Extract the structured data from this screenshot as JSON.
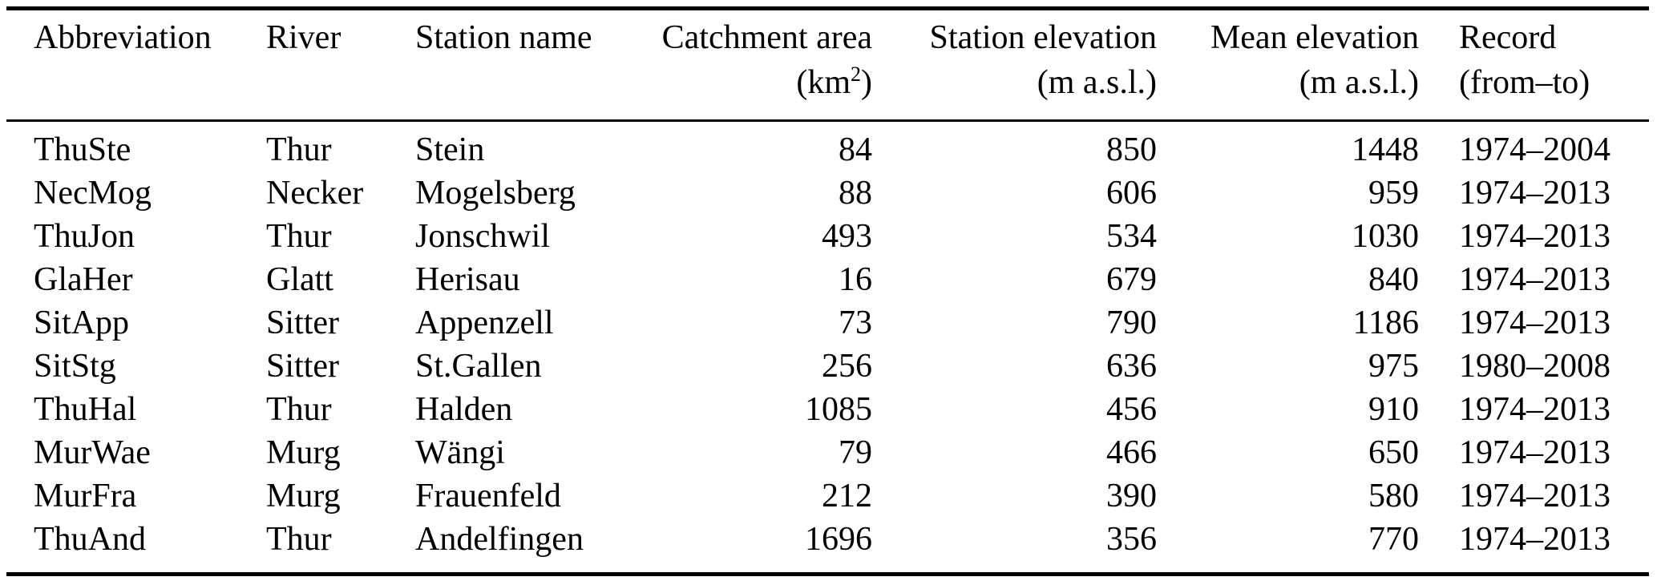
{
  "colors": {
    "text": "#000000",
    "background": "#ffffff",
    "rule": "#000000"
  },
  "table": {
    "columns": [
      {
        "label": "Abbreviation",
        "unit": ""
      },
      {
        "label": "River",
        "unit": ""
      },
      {
        "label": "Station name",
        "unit": ""
      },
      {
        "label": "Catchment area",
        "unit_prefix": "(km",
        "unit_sup": "2",
        "unit_suffix": ")"
      },
      {
        "label": "Station elevation",
        "unit": "(m a.s.l.)"
      },
      {
        "label": "Mean elevation",
        "unit": "(m a.s.l.)"
      },
      {
        "label": "Record",
        "unit": "(from–to)"
      }
    ],
    "rows": [
      [
        "ThuSte",
        "Thur",
        "Stein",
        "84",
        "850",
        "1448",
        "1974–2004"
      ],
      [
        "NecMog",
        "Necker",
        "Mogelsberg",
        "88",
        "606",
        "959",
        "1974–2013"
      ],
      [
        "ThuJon",
        "Thur",
        "Jonschwil",
        "493",
        "534",
        "1030",
        "1974–2013"
      ],
      [
        "GlaHer",
        "Glatt",
        "Herisau",
        "16",
        "679",
        "840",
        "1974–2013"
      ],
      [
        "SitApp",
        "Sitter",
        "Appenzell",
        "73",
        "790",
        "1186",
        "1974–2013"
      ],
      [
        "SitStg",
        "Sitter",
        "St.Gallen",
        "256",
        "636",
        "975",
        "1980–2008"
      ],
      [
        "ThuHal",
        "Thur",
        "Halden",
        "1085",
        "456",
        "910",
        "1974–2013"
      ],
      [
        "MurWae",
        "Murg",
        "Wängi",
        "79",
        "466",
        "650",
        "1974–2013"
      ],
      [
        "MurFra",
        "Murg",
        "Frauenfeld",
        "212",
        "390",
        "580",
        "1974–2013"
      ],
      [
        "ThuAnd",
        "Thur",
        "Andelfingen",
        "1696",
        "356",
        "770",
        "1974–2013"
      ]
    ]
  }
}
